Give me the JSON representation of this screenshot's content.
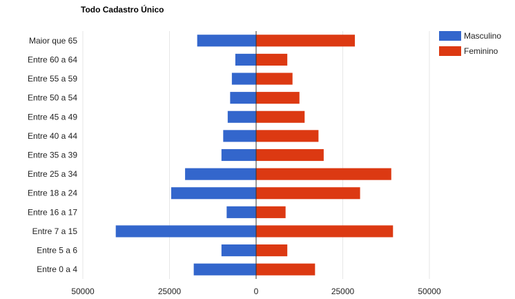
{
  "chart_data": {
    "type": "bar",
    "orientation": "horizontal",
    "title": "Todo Cadastro Único",
    "categories": [
      "Maior que 65",
      "Entre 60 a 64",
      "Entre 55 a 59",
      "Entre 50 a 54",
      "Entre 45 a 49",
      "Entre 40 a 44",
      "Entre 35 a 39",
      "Entre 25 a 34",
      "Entre 18 a 24",
      "Entre 16 a 17",
      "Entre 7 a 15",
      "Entre 5 a 6",
      "Entre 0 a 4"
    ],
    "series": [
      {
        "name": "Masculino",
        "color": "#3366cc",
        "values": [
          -17000,
          -6000,
          -7000,
          -7500,
          -8200,
          -9500,
          -10000,
          -20500,
          -24500,
          -8500,
          -40500,
          -10000,
          -18000
        ]
      },
      {
        "name": "Feminino",
        "color": "#dc3912",
        "values": [
          28500,
          9000,
          10500,
          12500,
          14000,
          18000,
          19500,
          39000,
          30000,
          8500,
          39500,
          9000,
          17000
        ]
      }
    ],
    "xlim": [
      -50000,
      50000
    ],
    "xticks": [
      -50000,
      -25000,
      0,
      25000,
      50000
    ],
    "xtick_labels": [
      "50000",
      "25000",
      "0",
      "25000",
      "50000"
    ],
    "grid": true,
    "legend_position": "right"
  }
}
